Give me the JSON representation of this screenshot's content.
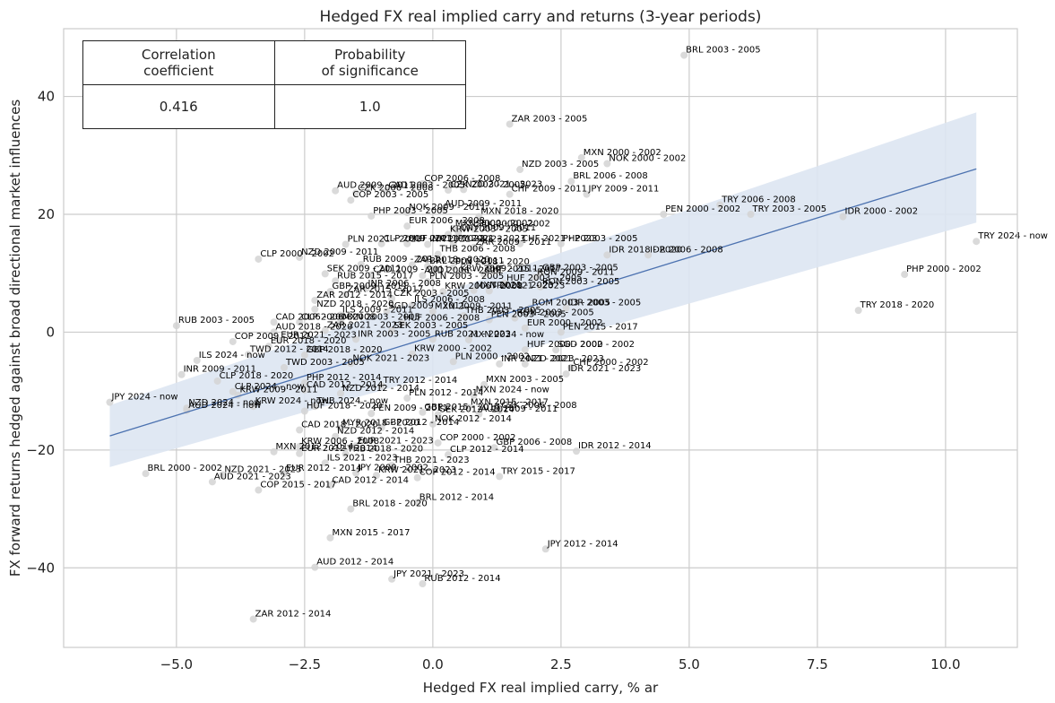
{
  "title": "Hedged FX real implied carry and returns (3-year periods)",
  "xlabel": "Hedged FX real implied carry, % ar",
  "ylabel": "FX forward returns hedged against broad directional market influences",
  "stats_table": {
    "headers": [
      [
        "Correlation",
        "coefficient"
      ],
      [
        "Probability",
        "of significance"
      ]
    ],
    "values": [
      "0.416",
      "1.0"
    ]
  },
  "colors": {
    "points": "#d3d3d3",
    "regression_line": "#4c72b0",
    "confidence_band": "#dde5f2",
    "grid": "#cccccc",
    "frame": "#cccccc",
    "text": "#222222"
  },
  "chart_data": {
    "type": "scatter",
    "title": "Hedged FX real implied carry and returns (3-year periods)",
    "xlabel": "Hedged FX real implied carry, % ar",
    "ylabel": "FX forward returns hedged against broad directional market influences",
    "xlim": [
      -7.2,
      11.4
    ],
    "ylim": [
      -53.5,
      51.5
    ],
    "xticks": [
      -5.0,
      -2.5,
      0.0,
      2.5,
      5.0,
      7.5,
      10.0
    ],
    "xtick_labels": [
      "−5.0",
      "−2.5",
      "0.0",
      "2.5",
      "5.0",
      "7.5",
      "10.0"
    ],
    "yticks": [
      -40,
      -20,
      0,
      20,
      40
    ],
    "ytick_labels": [
      "−40",
      "−20",
      "0",
      "20",
      "40"
    ],
    "grid": true,
    "regression": {
      "x": [
        -6.3,
        10.6
      ],
      "y": [
        -17.6,
        27.7
      ],
      "band_upper": [
        -12.4,
        37.3
      ],
      "band_lower": [
        -22.9,
        18.6
      ]
    },
    "points": [
      {
        "label": "BRL 2003 - 2005",
        "x": 4.9,
        "y": 47.0
      },
      {
        "label": "ZAR 2003 - 2005",
        "x": 1.5,
        "y": 35.3
      },
      {
        "label": "MXN 2000 - 2002",
        "x": 2.9,
        "y": 29.6
      },
      {
        "label": "NOK 2000 - 2002",
        "x": 3.4,
        "y": 28.6
      },
      {
        "label": "NZD 2003 - 2005",
        "x": 1.7,
        "y": 27.6
      },
      {
        "label": "BRL 2006 - 2008",
        "x": 2.7,
        "y": 25.6
      },
      {
        "label": "COP 2006 - 2008",
        "x": -0.2,
        "y": 25.2
      },
      {
        "label": "AUD 2009 - 2011",
        "x": -1.9,
        "y": 24.0
      },
      {
        "label": "CAD 2003 - 2005",
        "x": -0.9,
        "y": 24.0
      },
      {
        "label": "NZD 2021 - 2023",
        "x": 0.6,
        "y": 24.2
      },
      {
        "label": "CZK 2003 - 2005",
        "x": 0.3,
        "y": 24.1
      },
      {
        "label": "CHF 2009 - 2011",
        "x": 1.5,
        "y": 23.4
      },
      {
        "label": "JPY 2009 - 2011",
        "x": 3.0,
        "y": 23.4
      },
      {
        "label": "COP 2003 - 2005",
        "x": -1.6,
        "y": 22.4
      },
      {
        "label": "CZK 2006 - 2008",
        "x": -1.5,
        "y": 23.6
      },
      {
        "label": "TRY 2006 - 2008",
        "x": 5.6,
        "y": 21.6
      },
      {
        "label": "AUD 2009 - 2011",
        "x": 0.2,
        "y": 20.9
      },
      {
        "label": "NOK 2009 - 2011",
        "x": -0.5,
        "y": 20.3
      },
      {
        "label": "PHP 2003 - 2005",
        "x": -1.2,
        "y": 19.7
      },
      {
        "label": "MXN 2018 - 2020",
        "x": 0.9,
        "y": 19.6
      },
      {
        "label": "PEN 2000 - 2002",
        "x": 4.5,
        "y": 20.0
      },
      {
        "label": "TRY 2003 - 2005",
        "x": 6.2,
        "y": 20.0
      },
      {
        "label": "IDR 2000 - 2002",
        "x": 8.0,
        "y": 19.6
      },
      {
        "label": "EUR 2006 - 2008",
        "x": -0.5,
        "y": 18.0
      },
      {
        "label": "MXN 2000 - 2002",
        "x": 0.4,
        "y": 17.6
      },
      {
        "label": "SEK 2000 - 2002",
        "x": 0.8,
        "y": 17.5
      },
      {
        "label": "KRW 2003 - 2005",
        "x": 0.3,
        "y": 16.6
      },
      {
        "label": "CNY 2009 - 2011",
        "x": 0.5,
        "y": 16.8
      },
      {
        "label": "TRY 2024 - now",
        "x": 10.6,
        "y": 15.4
      },
      {
        "label": "PLN 2021 - 2023",
        "x": -1.7,
        "y": 14.9
      },
      {
        "label": "CLP 2009 - 2011",
        "x": -1.0,
        "y": 15.0
      },
      {
        "label": "HUF 2021 - 2023",
        "x": -0.5,
        "y": 15.0
      },
      {
        "label": "INR 2021 - 2023",
        "x": -0.1,
        "y": 14.9
      },
      {
        "label": "JPY 2021 - 2023",
        "x": 0.4,
        "y": 15.0
      },
      {
        "label": "CHF 2021 - 2023",
        "x": 1.7,
        "y": 15.0
      },
      {
        "label": "PHP 2003 - 2005",
        "x": 2.5,
        "y": 15.0
      },
      {
        "label": "ZAR 2009 - 2011",
        "x": 0.8,
        "y": 14.4
      },
      {
        "label": "THB 2006 - 2008",
        "x": 0.1,
        "y": 13.2
      },
      {
        "label": "IDR 2018 - 2020",
        "x": 3.4,
        "y": 13.1
      },
      {
        "label": "IDR 2006 - 2008",
        "x": 4.2,
        "y": 13.1
      },
      {
        "label": "CLP 2000 - 2002",
        "x": -3.4,
        "y": 12.4
      },
      {
        "label": "NZD 2009 - 2011",
        "x": -2.6,
        "y": 12.7
      },
      {
        "label": "RUB 2009 - 2011",
        "x": -1.4,
        "y": 11.5
      },
      {
        "label": "ZAR 2018 - 2020",
        "x": -0.4,
        "y": 11.4
      },
      {
        "label": "BRL 2009 - 2011",
        "x": -0.1,
        "y": 11.2
      },
      {
        "label": "PLN 2018 - 2020",
        "x": 0.4,
        "y": 11.0
      },
      {
        "label": "GBP 2003 - 2005",
        "x": 2.1,
        "y": 10.0
      },
      {
        "label": "PHP 2000 - 2002",
        "x": 9.2,
        "y": 9.8
      },
      {
        "label": "SEK 2009 - 2011",
        "x": -2.1,
        "y": 9.9
      },
      {
        "label": "CAD 2009 - 2011",
        "x": -1.2,
        "y": 9.7
      },
      {
        "label": "AUD 2006 - 2008",
        "x": -0.2,
        "y": 9.6
      },
      {
        "label": "KRW 2009 - 2011",
        "x": 0.5,
        "y": 9.9
      },
      {
        "label": "CHF 2015 - 2017",
        "x": 1.0,
        "y": 9.8
      },
      {
        "label": "RON 2009 - 2011",
        "x": 2.0,
        "y": 9.3
      },
      {
        "label": "RUB 2015 - 2017",
        "x": -1.9,
        "y": 8.7
      },
      {
        "label": "PLN 2003 - 2005",
        "x": -0.1,
        "y": 8.6
      },
      {
        "label": "HUF 2003 - 2005",
        "x": 1.4,
        "y": 8.3
      },
      {
        "label": "RON 2003 - 2005",
        "x": 2.1,
        "y": 7.7
      },
      {
        "label": "INR 2006 - 2008",
        "x": -1.3,
        "y": 7.4
      },
      {
        "label": "KRW 2006 - 2008",
        "x": 0.2,
        "y": 6.9
      },
      {
        "label": "MXN 2021 - 2023",
        "x": 0.8,
        "y": 7.1
      },
      {
        "label": "TRY 2021 - 2023",
        "x": 1.1,
        "y": 7.0
      },
      {
        "label": "GBP 2009 - 2011",
        "x": -2.0,
        "y": 6.9
      },
      {
        "label": "ZAR 2015 - 2017",
        "x": -1.7,
        "y": 6.4
      },
      {
        "label": "CZK 2003 - 2005",
        "x": -0.8,
        "y": 5.7
      },
      {
        "label": "ZAR 2012 - 2014",
        "x": -2.3,
        "y": 5.4
      },
      {
        "label": "ILS 2006 - 2008",
        "x": -0.4,
        "y": 4.6
      },
      {
        "label": "ROM 2003 - 2005",
        "x": 1.9,
        "y": 4.1
      },
      {
        "label": "IDR 2003 - 2005",
        "x": 2.6,
        "y": 4.1
      },
      {
        "label": "NZD 2018 - 2020",
        "x": -2.3,
        "y": 3.9
      },
      {
        "label": "SGD 2009 - 2011",
        "x": -0.9,
        "y": 3.6
      },
      {
        "label": "MXN 2009 - 2011",
        "x": 0.0,
        "y": 3.5
      },
      {
        "label": "TRY 2018 - 2020",
        "x": 8.3,
        "y": 3.7
      },
      {
        "label": "ILS 2009 - 2011",
        "x": -1.8,
        "y": 2.9
      },
      {
        "label": "THB 2003 - 2005",
        "x": 0.6,
        "y": 2.8
      },
      {
        "label": "RON 2003 - 2005",
        "x": 1.6,
        "y": 2.4
      },
      {
        "label": "PEN 2003 - 2005",
        "x": 1.1,
        "y": 2.1
      },
      {
        "label": "CAD 2006 - 2008",
        "x": -3.1,
        "y": 1.7
      },
      {
        "label": "CLP 2006 - 2008",
        "x": -2.6,
        "y": 1.7
      },
      {
        "label": "MXN 2003 - 2005",
        "x": -1.8,
        "y": 1.7
      },
      {
        "label": "HUF 2006 - 2008",
        "x": -0.6,
        "y": 1.5
      },
      {
        "label": "RUB 2003 - 2005",
        "x": -5.0,
        "y": 1.1
      },
      {
        "label": "AUD 2018 - 2020",
        "x": -3.1,
        "y": 0.0
      },
      {
        "label": "ZAR 2021 - 2023",
        "x": -2.1,
        "y": 0.3
      },
      {
        "label": "SEK 2003 - 2005",
        "x": -0.8,
        "y": 0.2
      },
      {
        "label": "EUR 2000 - 2002",
        "x": 1.8,
        "y": 0.7
      },
      {
        "label": "PEN 2015 - 2017",
        "x": 2.5,
        "y": 0.0
      },
      {
        "label": "COP 2009 - 2011",
        "x": -3.9,
        "y": -1.6
      },
      {
        "label": "EUR 2021 - 2023",
        "x": -3.0,
        "y": -1.4
      },
      {
        "label": "INR 2003 - 2005",
        "x": -1.5,
        "y": -1.2
      },
      {
        "label": "RUB 2021 - 2023",
        "x": 0.0,
        "y": -1.2
      },
      {
        "label": "MXN 2024 - now",
        "x": 0.7,
        "y": -1.3
      },
      {
        "label": "EUR 2018 - 2020",
        "x": -3.2,
        "y": -2.4
      },
      {
        "label": "HUF 2000 - 2002",
        "x": 1.8,
        "y": -3.0
      },
      {
        "label": "TWD 2012 - 2014",
        "x": -3.6,
        "y": -3.8
      },
      {
        "label": "GBP 2018 - 2020",
        "x": -2.5,
        "y": -3.9
      },
      {
        "label": "KRW 2000 - 2002",
        "x": -0.4,
        "y": -3.7
      },
      {
        "label": "SGD 2000 - 2002",
        "x": 2.4,
        "y": -3.0
      },
      {
        "label": "ILS 2024 - now",
        "x": -4.6,
        "y": -4.8
      },
      {
        "label": "NOK 2021 - 2023",
        "x": -1.6,
        "y": -5.3
      },
      {
        "label": "PLN 2000 - 2002",
        "x": 0.4,
        "y": -5.0
      },
      {
        "label": "NZD 2021 - 2023",
        "x": 1.8,
        "y": -5.4
      },
      {
        "label": "INR 2009 - 2011",
        "x": -4.9,
        "y": -7.2
      },
      {
        "label": "TWD 2003 - 2005",
        "x": -2.9,
        "y": -6.0
      },
      {
        "label": "INR 2021 - 2023",
        "x": 1.3,
        "y": -5.4
      },
      {
        "label": "CHF 2000 - 2002",
        "x": 2.7,
        "y": -6.0
      },
      {
        "label": "IDR 2021 - 2023",
        "x": 2.6,
        "y": -7.1
      },
      {
        "label": "CLP 2018 - 2020",
        "x": -4.2,
        "y": -8.3
      },
      {
        "label": "PHP 2012 - 2014",
        "x": -2.5,
        "y": -8.6
      },
      {
        "label": "TRY 2012 - 2014",
        "x": -1.0,
        "y": -9.1
      },
      {
        "label": "MXN 2003 - 2005",
        "x": 1.0,
        "y": -8.9
      },
      {
        "label": "CLP 2024 - now",
        "x": -3.9,
        "y": -10.1
      },
      {
        "label": "KRW 2009 - 2011",
        "x": -3.8,
        "y": -10.7
      },
      {
        "label": "CAD 2012 - 2014",
        "x": -2.5,
        "y": -9.8
      },
      {
        "label": "NZD 2012 - 2014",
        "x": -1.8,
        "y": -10.4
      },
      {
        "label": "PLN 2012 - 2014",
        "x": -0.5,
        "y": -11.2
      },
      {
        "label": "MXN 2024 - now",
        "x": 0.8,
        "y": -10.7
      },
      {
        "label": "JPY 2024 - now",
        "x": -6.3,
        "y": -11.9
      },
      {
        "label": "NZD 2024 - now",
        "x": -4.8,
        "y": -12.9
      },
      {
        "label": "AUD 2024 - now",
        "x": -4.8,
        "y": -13.3
      },
      {
        "label": "KRW 2024 - now",
        "x": -3.5,
        "y": -12.6
      },
      {
        "label": "THB 2024 - now",
        "x": -2.3,
        "y": -12.6
      },
      {
        "label": "HUF 2018 - 2020",
        "x": -2.5,
        "y": -13.4
      },
      {
        "label": "PEN 2009 - 2011",
        "x": -1.2,
        "y": -13.8
      },
      {
        "label": "GBP 2015 - 2017",
        "x": -0.2,
        "y": -13.6
      },
      {
        "label": "MXN 2015 - 2017",
        "x": 0.7,
        "y": -12.8
      },
      {
        "label": "SEK 2012 - 2014",
        "x": 0.1,
        "y": -14.0
      },
      {
        "label": "CZK 2006 - 2008",
        "x": 1.3,
        "y": -13.3
      },
      {
        "label": "AUD 2009 - 2011",
        "x": 0.9,
        "y": -13.9
      },
      {
        "label": "NOK 2012 - 2014",
        "x": 0.0,
        "y": -15.6
      },
      {
        "label": "MYR 2018 - 2020",
        "x": -1.8,
        "y": -16.3
      },
      {
        "label": "GBP 2012 - 2014",
        "x": -1.0,
        "y": -16.2
      },
      {
        "label": "CAD 2018 - 2020",
        "x": -2.6,
        "y": -16.6
      },
      {
        "label": "NZD 2012 - 2014",
        "x": -1.9,
        "y": -17.7
      },
      {
        "label": "COP 2000 - 2002",
        "x": 0.1,
        "y": -18.8
      },
      {
        "label": "GBP 2006 - 2008",
        "x": 1.2,
        "y": -19.6
      },
      {
        "label": "KRW 2006 - 2008",
        "x": -2.6,
        "y": -19.4
      },
      {
        "label": "EUR 2021 - 2023",
        "x": -1.5,
        "y": -19.3
      },
      {
        "label": "MXN 2012 - 2014",
        "x": -3.1,
        "y": -20.3
      },
      {
        "label": "EUR 2012 - 2014",
        "x": -2.6,
        "y": -20.6
      },
      {
        "label": "THB 2018 - 2020",
        "x": -1.7,
        "y": -20.7
      },
      {
        "label": "CLP 2012 - 2014",
        "x": 0.3,
        "y": -20.8
      },
      {
        "label": "IDR 2012 - 2014",
        "x": 2.8,
        "y": -20.2
      },
      {
        "label": "ILS 2021 - 2023",
        "x": -2.1,
        "y": -22.2
      },
      {
        "label": "THB 2021 - 2023",
        "x": -0.8,
        "y": -22.6
      },
      {
        "label": "BRL 2000 - 2002",
        "x": -5.6,
        "y": -24.0
      },
      {
        "label": "NZD 2021 - 2023",
        "x": -4.1,
        "y": -24.2
      },
      {
        "label": "EUR 2012 - 2014",
        "x": -2.9,
        "y": -24.0
      },
      {
        "label": "JPY 2000 - 2002",
        "x": -1.5,
        "y": -23.9
      },
      {
        "label": "KRW 2021 - 2023",
        "x": -1.1,
        "y": -24.3
      },
      {
        "label": "COP 2012 - 2014",
        "x": -0.3,
        "y": -24.7
      },
      {
        "label": "TRY 2015 - 2017",
        "x": 1.3,
        "y": -24.5
      },
      {
        "label": "AUD 2021 - 2023",
        "x": -4.3,
        "y": -25.4
      },
      {
        "label": "CAD 2012 - 2014",
        "x": -2.0,
        "y": -26.0
      },
      {
        "label": "COP 2015 - 2017",
        "x": -3.4,
        "y": -26.8
      },
      {
        "label": "BRL 2012 - 2014",
        "x": -0.3,
        "y": -28.9
      },
      {
        "label": "BRL 2018 - 2020",
        "x": -1.6,
        "y": -30.0
      },
      {
        "label": "MXN 2015 - 2017",
        "x": -2.0,
        "y": -34.9
      },
      {
        "label": "JPY 2012 - 2014",
        "x": 2.2,
        "y": -36.8
      },
      {
        "label": "AUD 2012 - 2014",
        "x": -2.3,
        "y": -39.9
      },
      {
        "label": "JPY 2021 - 2023",
        "x": -0.8,
        "y": -41.9
      },
      {
        "label": "RUB 2012 - 2014",
        "x": -0.2,
        "y": -42.7
      },
      {
        "label": "ZAR 2012 - 2014",
        "x": -3.5,
        "y": -48.7
      }
    ]
  }
}
